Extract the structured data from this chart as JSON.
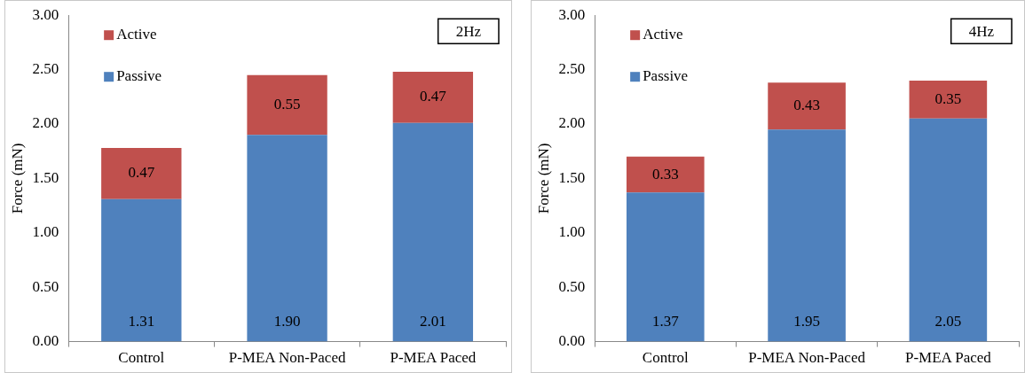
{
  "chart_data": [
    {
      "type": "bar",
      "stacked": true,
      "categories": [
        "Control",
        "P-MEA Non-Paced",
        "P-MEA Paced"
      ],
      "ylabel": "Force (mN)",
      "ylim": [
        0,
        3
      ],
      "yticks": [
        {
          "value": 0,
          "label": "0.00"
        },
        {
          "value": 0.5,
          "label": "0.50"
        },
        {
          "value": 1,
          "label": "1.00"
        },
        {
          "value": 1.5,
          "label": "1.50"
        },
        {
          "value": 2,
          "label": "2.00"
        },
        {
          "value": 2.5,
          "label": "2.50"
        },
        {
          "value": 3,
          "label": "3.00"
        }
      ],
      "grid": false,
      "legend": "top left",
      "data_labels": true,
      "annotations": [
        "2Hz"
      ],
      "series": [
        {
          "name": "Passive",
          "color": "#4f81bd",
          "values": [
            1.31,
            1.9,
            2.01
          ],
          "value_labels": [
            "1.31",
            "1.90",
            "2.01"
          ]
        },
        {
          "name": "Active",
          "color": "#c0504d",
          "values": [
            0.47,
            0.55,
            0.47
          ],
          "value_labels": [
            "0.47",
            "0.55",
            "0.47"
          ]
        }
      ]
    },
    {
      "type": "bar",
      "stacked": true,
      "categories": [
        "Control",
        "P-MEA Non-Paced",
        "P-MEA Paced"
      ],
      "ylabel": "Force (mN)",
      "ylim": [
        0,
        3
      ],
      "yticks": [
        {
          "value": 0,
          "label": "0.00"
        },
        {
          "value": 0.5,
          "label": "0.50"
        },
        {
          "value": 1,
          "label": "1.00"
        },
        {
          "value": 1.5,
          "label": "1.50"
        },
        {
          "value": 2,
          "label": "2.00"
        },
        {
          "value": 2.5,
          "label": "2.50"
        },
        {
          "value": 3,
          "label": "3.00"
        }
      ],
      "grid": false,
      "legend": "top left",
      "data_labels": true,
      "annotations": [
        "4Hz"
      ],
      "series": [
        {
          "name": "Passive",
          "color": "#4f81bd",
          "values": [
            1.37,
            1.95,
            2.05
          ],
          "value_labels": [
            "1.37",
            "1.95",
            "2.05"
          ]
        },
        {
          "name": "Active",
          "color": "#c0504d",
          "values": [
            0.33,
            0.43,
            0.35
          ],
          "value_labels": [
            "0.33",
            "0.43",
            "0.35"
          ]
        }
      ]
    }
  ]
}
